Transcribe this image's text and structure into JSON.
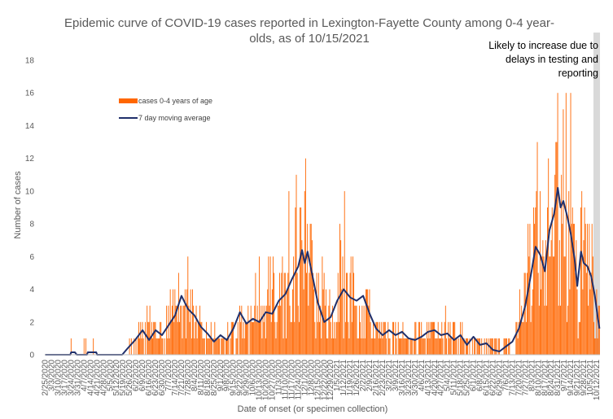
{
  "chart_data": {
    "type": "bar",
    "title_line1": "Epidemic curve of COVID-19 cases reported in Lexington-Fayette County among 0-4 year-",
    "title_line2": "olds, as of 10/15/2021",
    "xlabel": "Date of onset (or specimen collection)",
    "ylabel": "Number of cases",
    "ylim": [
      0,
      18
    ],
    "yticks": [
      0,
      2,
      4,
      6,
      8,
      10,
      12,
      14,
      16,
      18
    ],
    "x_start": "2/25/2020",
    "x_end": "10/15/2021",
    "x_tick_labels": [
      "2/25/2020",
      "3/3/2020",
      "3/10/2020",
      "3/17/2020",
      "3/24/2020",
      "3/31/2020",
      "4/7/2020",
      "4/14/2020",
      "4/21/2020",
      "4/28/2020",
      "5/5/2020",
      "5/12/2020",
      "5/19/2020",
      "5/26/2020",
      "6/2/2020",
      "6/9/2020",
      "6/16/2020",
      "6/23/2020",
      "6/30/2020",
      "7/7/2020",
      "7/14/2020",
      "7/21/2020",
      "7/28/2020",
      "8/4/2020",
      "8/11/2020",
      "8/18/2020",
      "8/25/2020",
      "9/1/2020",
      "9/8/2020",
      "9/15/2020",
      "9/22/2020",
      "9/29/2020",
      "10/6/2020",
      "10/13/2020",
      "10/20/2020",
      "10/27/2020",
      "11/3/2020",
      "11/10/2020",
      "11/17/2020",
      "11/24/2020",
      "12/1/2020",
      "12/8/2020",
      "12/15/2020",
      "12/22/2020",
      "12/29/2020",
      "1/5/2021",
      "1/12/2021",
      "1/19/2021",
      "1/26/2021",
      "2/2/2021",
      "2/9/2021",
      "2/16/2021",
      "2/23/2021",
      "3/2/2021",
      "3/9/2021",
      "3/16/2021",
      "3/23/2021",
      "3/30/2021",
      "4/6/2021",
      "4/13/2021",
      "4/20/2021",
      "4/27/2021",
      "5/4/2021",
      "5/11/2021",
      "5/18/2021",
      "5/25/2021",
      "6/1/2021",
      "6/8/2021",
      "6/15/2021",
      "6/22/2021",
      "6/29/2021",
      "7/6/2021",
      "7/13/2021",
      "7/20/2021",
      "7/27/2021",
      "8/3/2021",
      "8/10/2021",
      "8/17/2021",
      "8/24/2021",
      "8/31/2021",
      "9/7/2021",
      "9/14/2021",
      "9/21/2021",
      "9/28/2021",
      "10/5/2021",
      "10/12/2021"
    ],
    "series": [
      {
        "name": "cases 0-4 years of age",
        "kind": "bar",
        "color": "#FF6600"
      },
      {
        "name": "7 day moving average",
        "kind": "line",
        "color": "#1F2F6B"
      }
    ],
    "weekly_cases_keypoints": [
      [
        "2020-02-25",
        0
      ],
      [
        "2020-03-24",
        0.1
      ],
      [
        "2020-04-07",
        0.1
      ],
      [
        "2020-05-05",
        0
      ],
      [
        "2020-05-26",
        0.3
      ],
      [
        "2020-06-09",
        1.5
      ],
      [
        "2020-06-30",
        1.4
      ],
      [
        "2020-07-14",
        2.3
      ],
      [
        "2020-07-21",
        3.2
      ],
      [
        "2020-08-04",
        2.0
      ],
      [
        "2020-08-25",
        0.8
      ],
      [
        "2020-09-08",
        1.0
      ],
      [
        "2020-09-29",
        2.0
      ],
      [
        "2020-10-13",
        2.3
      ],
      [
        "2020-10-27",
        2.8
      ],
      [
        "2020-11-10",
        4.0
      ],
      [
        "2020-11-24",
        5.4
      ],
      [
        "2020-12-01",
        5.8
      ],
      [
        "2020-12-15",
        3.3
      ],
      [
        "2020-12-29",
        2.2
      ],
      [
        "2021-01-12",
        3.7
      ],
      [
        "2021-01-26",
        3.5
      ],
      [
        "2021-02-09",
        2.4
      ],
      [
        "2021-02-23",
        1.2
      ],
      [
        "2021-03-09",
        1.3
      ],
      [
        "2021-03-23",
        1.0
      ],
      [
        "2021-04-06",
        1.2
      ],
      [
        "2021-04-20",
        1.3
      ],
      [
        "2021-05-04",
        1.2
      ],
      [
        "2021-05-25",
        0.8
      ],
      [
        "2021-06-15",
        0.5
      ],
      [
        "2021-06-29",
        0.4
      ],
      [
        "2021-07-13",
        0.6
      ],
      [
        "2021-07-20",
        1.3
      ],
      [
        "2021-07-27",
        2.8
      ],
      [
        "2021-08-03",
        5.8
      ],
      [
        "2021-08-10",
        6.3
      ],
      [
        "2021-08-17",
        5.0
      ],
      [
        "2021-08-24",
        7.8
      ],
      [
        "2021-08-31",
        9.5
      ],
      [
        "2021-09-07",
        9.0
      ],
      [
        "2021-09-14",
        7.0
      ],
      [
        "2021-09-21",
        5.2
      ],
      [
        "2021-09-28",
        5.6
      ],
      [
        "2021-10-05",
        4.5
      ],
      [
        "2021-10-12",
        2.3
      ],
      [
        "2021-10-15",
        1.5
      ]
    ],
    "moving_average_keypoints": [
      [
        "2020-02-25",
        0
      ],
      [
        "2020-03-23",
        0
      ],
      [
        "2020-03-24",
        0.15
      ],
      [
        "2020-03-28",
        0.15
      ],
      [
        "2020-03-30",
        0
      ],
      [
        "2020-04-10",
        0
      ],
      [
        "2020-04-11",
        0.15
      ],
      [
        "2020-04-20",
        0.15
      ],
      [
        "2020-04-21",
        0
      ],
      [
        "2020-05-18",
        0
      ],
      [
        "2020-05-24",
        0.4
      ],
      [
        "2020-06-01",
        0.9
      ],
      [
        "2020-06-09",
        1.5
      ],
      [
        "2020-06-16",
        0.9
      ],
      [
        "2020-06-23",
        1.5
      ],
      [
        "2020-06-30",
        1.2
      ],
      [
        "2020-07-07",
        1.8
      ],
      [
        "2020-07-14",
        2.4
      ],
      [
        "2020-07-21",
        3.6
      ],
      [
        "2020-07-28",
        2.8
      ],
      [
        "2020-08-04",
        2.4
      ],
      [
        "2020-08-11",
        1.7
      ],
      [
        "2020-08-18",
        1.3
      ],
      [
        "2020-08-25",
        0.8
      ],
      [
        "2020-09-01",
        1.2
      ],
      [
        "2020-09-08",
        0.9
      ],
      [
        "2020-09-15",
        1.6
      ],
      [
        "2020-09-22",
        2.6
      ],
      [
        "2020-09-29",
        1.9
      ],
      [
        "2020-10-06",
        2.2
      ],
      [
        "2020-10-13",
        2.0
      ],
      [
        "2020-10-20",
        2.6
      ],
      [
        "2020-10-27",
        2.5
      ],
      [
        "2020-11-03",
        3.3
      ],
      [
        "2020-11-10",
        3.7
      ],
      [
        "2020-11-17",
        4.6
      ],
      [
        "2020-11-24",
        5.4
      ],
      [
        "2020-11-28",
        6.4
      ],
      [
        "2020-12-01",
        5.6
      ],
      [
        "2020-12-04",
        6.3
      ],
      [
        "2020-12-08",
        5.2
      ],
      [
        "2020-12-15",
        3.2
      ],
      [
        "2020-12-22",
        2.0
      ],
      [
        "2020-12-29",
        2.3
      ],
      [
        "2021-01-05",
        3.3
      ],
      [
        "2021-01-12",
        4.0
      ],
      [
        "2021-01-19",
        3.5
      ],
      [
        "2021-01-26",
        3.3
      ],
      [
        "2021-02-02",
        3.6
      ],
      [
        "2021-02-09",
        2.5
      ],
      [
        "2021-02-16",
        1.6
      ],
      [
        "2021-02-23",
        1.2
      ],
      [
        "2021-03-02",
        1.5
      ],
      [
        "2021-03-09",
        1.2
      ],
      [
        "2021-03-16",
        1.4
      ],
      [
        "2021-03-23",
        1.0
      ],
      [
        "2021-03-30",
        0.9
      ],
      [
        "2021-04-06",
        1.1
      ],
      [
        "2021-04-13",
        1.4
      ],
      [
        "2021-04-20",
        1.5
      ],
      [
        "2021-04-27",
        1.2
      ],
      [
        "2021-05-04",
        1.3
      ],
      [
        "2021-05-11",
        0.9
      ],
      [
        "2021-05-18",
        1.2
      ],
      [
        "2021-05-25",
        0.6
      ],
      [
        "2021-06-01",
        1.1
      ],
      [
        "2021-06-08",
        0.6
      ],
      [
        "2021-06-15",
        0.7
      ],
      [
        "2021-06-22",
        0.3
      ],
      [
        "2021-06-29",
        0.2
      ],
      [
        "2021-07-06",
        0.5
      ],
      [
        "2021-07-13",
        0.8
      ],
      [
        "2021-07-20",
        1.6
      ],
      [
        "2021-07-27",
        3.0
      ],
      [
        "2021-08-03",
        5.2
      ],
      [
        "2021-08-07",
        6.6
      ],
      [
        "2021-08-12",
        6.1
      ],
      [
        "2021-08-17",
        5.1
      ],
      [
        "2021-08-22",
        7.6
      ],
      [
        "2021-08-27",
        8.6
      ],
      [
        "2021-08-31",
        10.2
      ],
      [
        "2021-09-03",
        9.0
      ],
      [
        "2021-09-06",
        9.4
      ],
      [
        "2021-09-10",
        8.5
      ],
      [
        "2021-09-14",
        7.4
      ],
      [
        "2021-09-18",
        5.9
      ],
      [
        "2021-09-21",
        4.2
      ],
      [
        "2021-09-25",
        6.3
      ],
      [
        "2021-09-28",
        5.6
      ],
      [
        "2021-10-02",
        5.4
      ],
      [
        "2021-10-06",
        4.8
      ],
      [
        "2021-10-10",
        3.6
      ],
      [
        "2021-10-13",
        2.3
      ],
      [
        "2021-10-15",
        1.6
      ]
    ],
    "legend_position": "upper-left",
    "shaded_period_start": "10/9/2021",
    "shaded_period_end": "10/15/2021",
    "shaded_color": "#D9D9D9",
    "grid": false
  },
  "annotation": {
    "line1": "Likely to increase due to",
    "line2": "delays in testing and",
    "line3": "reporting"
  },
  "legend": {
    "cases_label": "cases 0-4 years of age",
    "avg_label": "7 day moving average"
  }
}
